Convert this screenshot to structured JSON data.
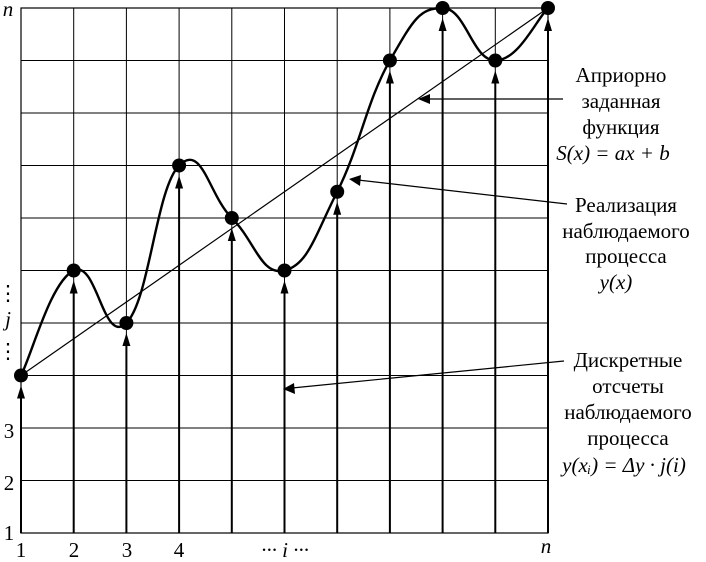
{
  "axes": {
    "x_tick_labels": [
      "1",
      "2",
      "3",
      "4",
      "··· i ···",
      "n"
    ],
    "y_tick_labels": [
      "1",
      "2",
      "3",
      "⋮",
      "j",
      "⋮"
    ],
    "y_top_label": "n"
  },
  "annotations": [
    {
      "lines": [
        "Априорно",
        "заданная",
        "функция",
        "S(x) = ax + b"
      ]
    },
    {
      "lines": [
        "Реализация",
        "наблюдаемого",
        "процесса",
        "y(x)"
      ]
    },
    {
      "lines": [
        "Дискретные",
        "отсчеты",
        "наблюдаемого",
        "процесса",
        "y(xᵢ) = Δy · j(i)"
      ]
    }
  ],
  "chart_data": {
    "type": "line",
    "series": [
      {
        "kind": "sampled points",
        "x": [
          1,
          2,
          3,
          4,
          5,
          6,
          7,
          8,
          9,
          10,
          11
        ],
        "y": [
          4,
          6,
          5,
          8,
          7,
          6,
          7.5,
          10,
          11,
          10,
          11
        ]
      },
      {
        "kind": "straight line",
        "x": [
          1,
          11
        ],
        "y": [
          4,
          11
        ]
      }
    ],
    "grid": true,
    "arrows_on_every_x": true
  }
}
